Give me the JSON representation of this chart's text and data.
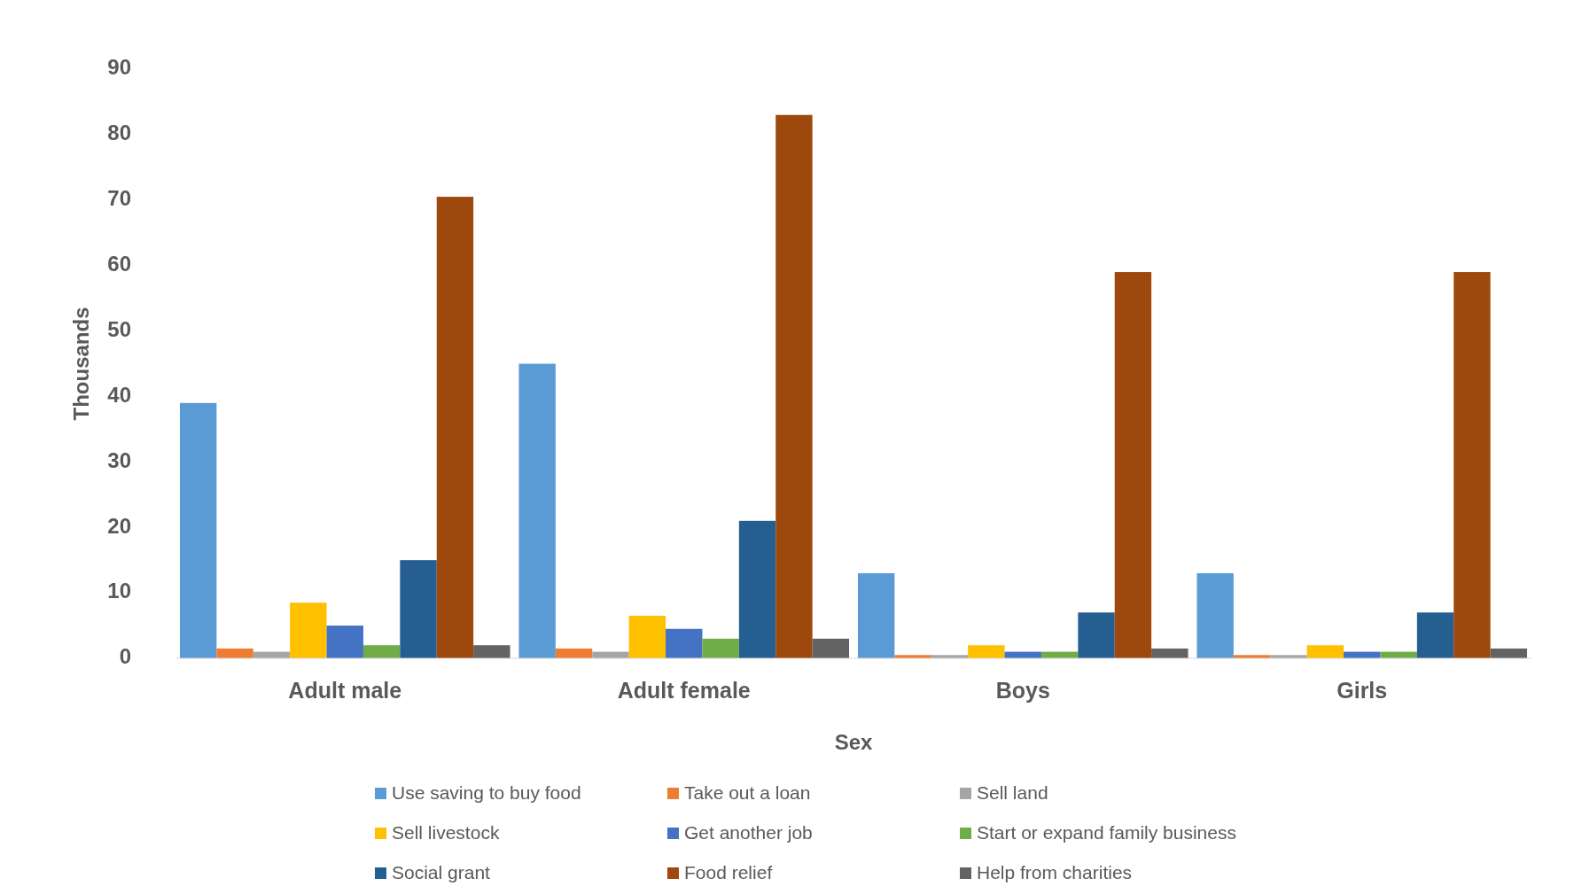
{
  "chart_data": {
    "type": "bar",
    "xlabel": "Sex",
    "ylabel": "Thousands",
    "categories": [
      "Adult male",
      "Adult female",
      "Boys",
      "Girls"
    ],
    "series": [
      {
        "name": "Use saving to buy food",
        "color": "#5b9bd5",
        "values": [
          39,
          45,
          13,
          13
        ]
      },
      {
        "name": "Take out a loan",
        "color": "#ed7d31",
        "values": [
          1.5,
          1.5,
          0.5,
          0.5
        ]
      },
      {
        "name": "Sell land",
        "color": "#a5a5a5",
        "values": [
          1,
          1,
          0.5,
          0.5
        ]
      },
      {
        "name": "Sell livestock",
        "color": "#ffc000",
        "values": [
          8.5,
          6.5,
          2,
          2
        ]
      },
      {
        "name": "Get another job",
        "color": "#4472c4",
        "values": [
          5,
          4.5,
          1,
          1
        ]
      },
      {
        "name": "Start or expand family business",
        "color": "#70ad47",
        "values": [
          2,
          3,
          1,
          1
        ]
      },
      {
        "name": "Social grant",
        "color": "#255e91",
        "values": [
          15,
          21,
          7,
          7
        ]
      },
      {
        "name": "Food relief",
        "color": "#9e480e",
        "values": [
          70.5,
          83,
          59,
          59
        ]
      },
      {
        "name": "Help from charities",
        "color": "#636363",
        "values": [
          2,
          3,
          1.5,
          1.5
        ]
      }
    ],
    "ylim": [
      0,
      90
    ],
    "yticks": [
      0,
      10,
      20,
      30,
      40,
      50,
      60,
      70,
      80,
      90
    ],
    "grid": false,
    "legend": "bottom"
  }
}
